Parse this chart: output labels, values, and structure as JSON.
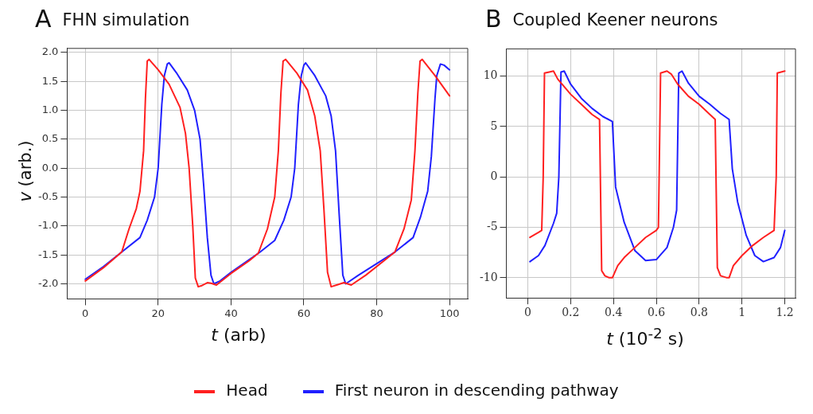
{
  "chart_data": [
    {
      "type": "line",
      "title": "FHN simulation",
      "annotations": [
        "A"
      ],
      "xlabel": "t (arb)",
      "ylabel": "v  (arb.)",
      "xlim": [
        -5,
        105
      ],
      "ylim": [
        -2.26,
        2.07
      ],
      "xticks": [
        0,
        20,
        40,
        60,
        80,
        100
      ],
      "yticks": [
        {
          "value": -2,
          "label": "-2.0"
        },
        {
          "value": -1.5,
          "label": "-1.5"
        },
        {
          "value": -1,
          "label": "-1.0"
        },
        {
          "value": -0.5,
          "label": "-0.5"
        },
        {
          "value": 0,
          "label": "0.0"
        },
        {
          "value": 0.5,
          "label": "0.5"
        },
        {
          "value": 1,
          "label": "1.0"
        },
        {
          "value": 1.5,
          "label": "1.5"
        },
        {
          "value": 2,
          "label": "2.0"
        }
      ],
      "grid": true,
      "legend": "bottom",
      "series": [
        {
          "name": "Head",
          "color": "#ff2020",
          "x": [
            0,
            5,
            10,
            12,
            14,
            15,
            16,
            16.5,
            17,
            17.5,
            20,
            23,
            26,
            27.5,
            28.5,
            29.5,
            30.2,
            31,
            32,
            33.5,
            34.5,
            36,
            40,
            45,
            47.5,
            50,
            52,
            53,
            53.7,
            54.3,
            55,
            58,
            61,
            63,
            64.5,
            65.5,
            66.5,
            67.5,
            69,
            71,
            73,
            77,
            82,
            85,
            87.5,
            89.5,
            90.5,
            91.3,
            91.9,
            92.5,
            96,
            100
          ],
          "values": [
            -1.95,
            -1.72,
            -1.45,
            -1.05,
            -0.7,
            -0.4,
            0.3,
            1.2,
            1.85,
            1.88,
            1.7,
            1.45,
            1.05,
            0.6,
            0,
            -1,
            -1.9,
            -2.05,
            -2.03,
            -1.98,
            -1.99,
            -2.02,
            -1.82,
            -1.6,
            -1.47,
            -1.05,
            -0.5,
            0.3,
            1.3,
            1.85,
            1.88,
            1.65,
            1.35,
            0.9,
            0.3,
            -0.7,
            -1.8,
            -2.05,
            -2.02,
            -1.98,
            -2.02,
            -1.85,
            -1.6,
            -1.45,
            -1.05,
            -0.55,
            0.3,
            1.3,
            1.85,
            1.88,
            1.6,
            1.25
          ]
        },
        {
          "name": "First neuron in descending pathway",
          "color": "#2020ff",
          "x": [
            0,
            5,
            10,
            15,
            17,
            19,
            20,
            21,
            21.7,
            22.5,
            23,
            25,
            28,
            30,
            31.5,
            32.5,
            33.5,
            34.5,
            35.3,
            37,
            40,
            48,
            52,
            54.5,
            56.5,
            57.5,
            58.5,
            59.3,
            60,
            60.5,
            63,
            66,
            67.5,
            68.7,
            69.7,
            70.7,
            71.5,
            75,
            80,
            85,
            90,
            92,
            94,
            95,
            96,
            96.5,
            97.5,
            98.5,
            100
          ],
          "values": [
            -1.92,
            -1.7,
            -1.45,
            -1.2,
            -0.9,
            -0.5,
            0,
            1.1,
            1.6,
            1.8,
            1.82,
            1.65,
            1.35,
            1,
            0.5,
            -0.3,
            -1.2,
            -1.85,
            -2,
            -1.95,
            -1.8,
            -1.45,
            -1.25,
            -0.9,
            -0.5,
            0,
            1.1,
            1.6,
            1.78,
            1.82,
            1.6,
            1.25,
            0.9,
            0.3,
            -0.8,
            -1.85,
            -2,
            -1.85,
            -1.65,
            -1.45,
            -1.2,
            -0.85,
            -0.4,
            0.2,
            1.2,
            1.6,
            1.8,
            1.78,
            1.7
          ]
        }
      ]
    },
    {
      "type": "line",
      "title": "Coupled Keener neurons",
      "annotations": [
        "B"
      ],
      "xlabel": "t (10$^{-2}$ s)",
      "xlim": [
        -0.1,
        1.25
      ],
      "ylim": [
        -12,
        12.7
      ],
      "xticks": [
        0,
        0.2,
        0.4,
        0.6,
        0.8,
        1,
        1.2
      ],
      "yticks": [
        -10,
        -5,
        0,
        5,
        10
      ],
      "grid": true,
      "series": [
        {
          "color": "#ff2020",
          "x": [
            0.01,
            0.05,
            0.065,
            0.072,
            0.078,
            0.1,
            0.12,
            0.14,
            0.2,
            0.25,
            0.3,
            0.335,
            0.345,
            0.36,
            0.38,
            0.395,
            0.42,
            0.45,
            0.5,
            0.55,
            0.6,
            0.61,
            0.62,
            0.65,
            0.67,
            0.7,
            0.75,
            0.8,
            0.85,
            0.875,
            0.885,
            0.9,
            0.93,
            0.94,
            0.96,
            1,
            1.05,
            1.1,
            1.15,
            1.16,
            1.165,
            1.2
          ],
          "values": [
            -6,
            -5.5,
            -5.3,
            0,
            10.3,
            10.4,
            10.5,
            9.7,
            8.2,
            7.2,
            6.2,
            5.7,
            -9.3,
            -9.8,
            -10,
            -10,
            -8.8,
            -8,
            -7,
            -6,
            -5.3,
            -5,
            10.3,
            10.5,
            10.2,
            9.2,
            8,
            7.2,
            6.2,
            5.7,
            -9,
            -9.8,
            -10,
            -10,
            -8.8,
            -7.8,
            -6.8,
            -6,
            -5.3,
            0,
            10.3,
            10.5
          ]
        },
        {
          "color": "#2020ff",
          "x": [
            0.01,
            0.05,
            0.08,
            0.12,
            0.135,
            0.145,
            0.155,
            0.17,
            0.2,
            0.25,
            0.3,
            0.35,
            0.395,
            0.41,
            0.45,
            0.5,
            0.55,
            0.6,
            0.65,
            0.68,
            0.695,
            0.705,
            0.72,
            0.75,
            0.8,
            0.85,
            0.9,
            0.94,
            0.955,
            0.98,
            1.02,
            1.06,
            1.1,
            1.15,
            1.18,
            1.2
          ],
          "values": [
            -8.4,
            -7.8,
            -6.8,
            -4.6,
            -3.6,
            0,
            10.4,
            10.5,
            9.2,
            7.8,
            6.8,
            6,
            5.5,
            -1,
            -4.5,
            -7.3,
            -8.3,
            -8.2,
            -7,
            -5,
            -3.3,
            10.3,
            10.5,
            9.3,
            8,
            7.2,
            6.3,
            5.7,
            0.8,
            -2.5,
            -5.8,
            -7.8,
            -8.4,
            -8,
            -7,
            -5.3
          ]
        }
      ]
    }
  ]
}
